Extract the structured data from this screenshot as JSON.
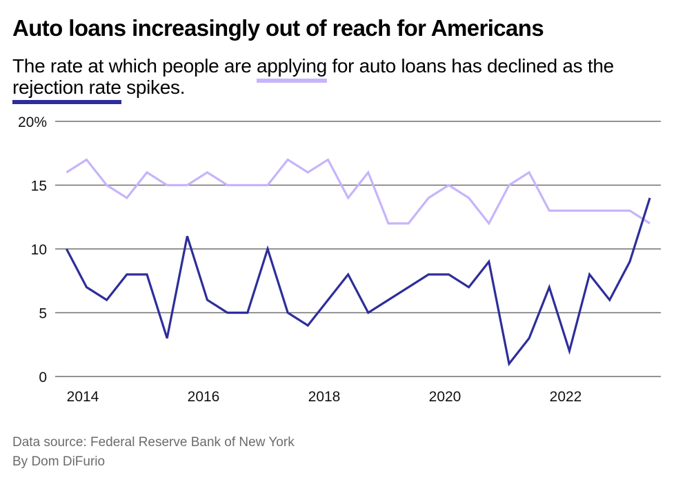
{
  "title": "Auto loans increasingly out of reach for Americans",
  "subtitle": {
    "part1": "The rate at which people are ",
    "highlight_applying": "applying",
    "part2": " for auto loans has declined as the ",
    "highlight_rejection": "rejection rate",
    "part3": " spikes."
  },
  "colors": {
    "applying": "#c7b4fb",
    "rejection": "#2e2d9b",
    "grid": "#6f6f6f",
    "footer_text": "#6b6b6b"
  },
  "footer": {
    "source": "Data source: Federal Reserve Bank of New York",
    "byline": "By Dom DiFurio"
  },
  "chart_data": {
    "type": "line",
    "title": "Auto loans increasingly out of reach for Americans",
    "xlabel": "",
    "ylabel": "",
    "ylim": [
      0,
      20
    ],
    "yticks": [
      0,
      5,
      10,
      15,
      20
    ],
    "ytick_labels": [
      "0",
      "5",
      "10",
      "15",
      "20%"
    ],
    "xticks": [
      2014,
      2016,
      2018,
      2020,
      2022
    ],
    "xtick_labels": [
      "2014",
      "2016",
      "2018",
      "2020",
      "2022"
    ],
    "x_start": 2013.73,
    "x_step": 0.3333,
    "grid": "horizontal",
    "legend": "inline in subtitle",
    "series": [
      {
        "name": "Application rate (applying)",
        "color_key": "applying",
        "values": [
          16,
          17,
          15,
          14,
          16,
          15,
          15,
          16,
          15,
          15,
          15,
          17,
          16,
          17,
          14,
          16,
          12,
          12,
          14,
          15,
          14,
          12,
          15,
          16,
          13,
          13,
          13,
          13,
          13,
          12
        ]
      },
      {
        "name": "Rejection rate",
        "color_key": "rejection",
        "values": [
          10,
          7,
          6,
          8,
          8,
          3,
          11,
          6,
          5,
          5,
          10,
          5,
          4,
          6,
          8,
          5,
          6,
          7,
          8,
          8,
          7,
          9,
          1,
          3,
          7,
          2,
          8,
          6,
          9,
          14
        ]
      }
    ]
  }
}
